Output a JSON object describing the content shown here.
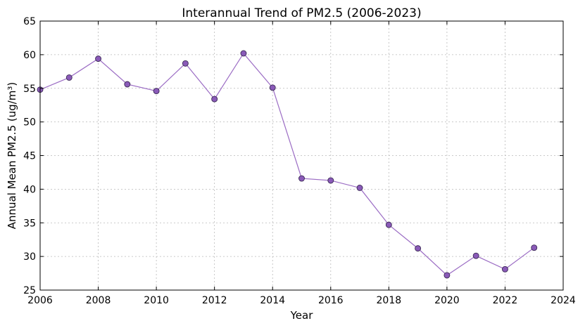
{
  "chart_data": {
    "type": "line",
    "title": "Interannual Trend of PM2.5 (2006-2023)",
    "xlabel": "Year",
    "ylabel": "Annual Mean PM2.5 (ug/m³)",
    "xlim": [
      2006,
      2024
    ],
    "ylim": [
      25,
      65
    ],
    "xticks": [
      2006,
      2008,
      2010,
      2012,
      2014,
      2016,
      2018,
      2020,
      2022,
      2024
    ],
    "yticks": [
      25,
      30,
      35,
      40,
      45,
      50,
      55,
      60,
      65
    ],
    "grid": true,
    "legend": "none",
    "series": [
      {
        "color": "#9b6cc4",
        "marker_color": "#8a5ab8",
        "x": [
          2006,
          2007,
          2008,
          2009,
          2010,
          2011,
          2012,
          2013,
          2014,
          2015,
          2016,
          2017,
          2018,
          2019,
          2020,
          2021,
          2022,
          2023
        ],
        "values": [
          54.8,
          56.6,
          59.4,
          55.6,
          54.6,
          58.7,
          53.4,
          60.2,
          55.1,
          41.6,
          41.3,
          40.2,
          34.7,
          31.2,
          27.2,
          30.1,
          28.1,
          31.3
        ]
      }
    ]
  }
}
